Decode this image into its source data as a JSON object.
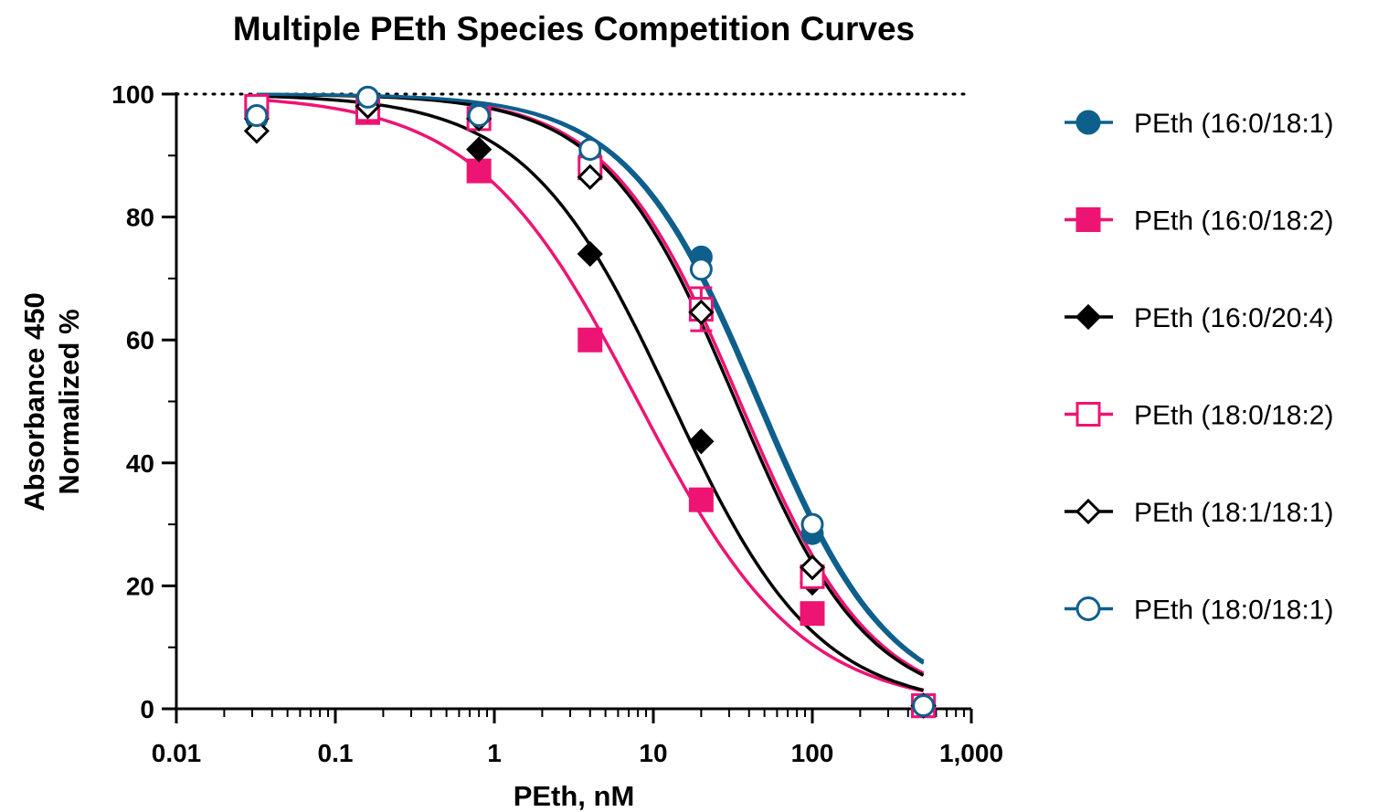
{
  "chart_data": {
    "type": "scatter",
    "title": "Multiple PEth Species Competition Curves",
    "xlabel": "PEth, nM",
    "ylabel_line1": "Absorbance 450",
    "ylabel_line2": "Normalized %",
    "xscale": "log",
    "xlim": [
      0.01,
      1000
    ],
    "ylim": [
      0,
      100
    ],
    "x_ticks": [
      0.01,
      0.1,
      1,
      10,
      100,
      1000
    ],
    "x_tick_labels": [
      "0.01",
      "0.1",
      "1",
      "10",
      "100",
      "1,000"
    ],
    "y_ticks": [
      0,
      20,
      40,
      60,
      80,
      100
    ],
    "y_tick_labels": [
      "0",
      "20",
      "40",
      "60",
      "80",
      "100"
    ],
    "reference_line": {
      "y": 100,
      "style": "dotted"
    },
    "legend_position": "right",
    "x": [
      0.032,
      0.16,
      0.8,
      4,
      20,
      100,
      500
    ],
    "series": [
      {
        "name": "PEth (16:0/18:1)",
        "marker": "circle",
        "filled": true,
        "color": "#0f5f8c",
        "values": [
          96,
          99.5,
          97,
          90,
          73.5,
          28.5,
          0.5
        ],
        "ic50": 45,
        "hill": 1.05
      },
      {
        "name": "PEth (16:0/18:2)",
        "marker": "square",
        "filled": true,
        "color": "#ee1473",
        "values": [
          98,
          97,
          87.5,
          60,
          34,
          15.5,
          0.5
        ],
        "ic50": 8,
        "hill": 0.85
      },
      {
        "name": "PEth (16:0/20:4)",
        "marker": "diamond",
        "filled": true,
        "color": "#000000",
        "values": [
          96,
          97.5,
          91,
          74,
          43.5,
          20.5,
          0.5
        ],
        "ic50": 13,
        "hill": 0.95
      },
      {
        "name": "PEth (18:0/18:2)",
        "marker": "square",
        "filled": false,
        "color": "#ee1473",
        "values": [
          98,
          97.5,
          96,
          88,
          65,
          21.5,
          0.5
        ],
        "ic50": 35,
        "hill": 1.05,
        "error": [
          0,
          0,
          0,
          0,
          3.5,
          0,
          0
        ]
      },
      {
        "name": "PEth (18:1/18:1)",
        "marker": "diamond",
        "filled": false,
        "color": "#000000",
        "values": [
          94,
          98,
          96,
          86.5,
          64.5,
          23,
          0.5
        ],
        "ic50": 33,
        "hill": 1.05
      },
      {
        "name": "PEth (18:0/18:1)",
        "marker": "circle",
        "filled": false,
        "color": "#0f5f8c",
        "values": [
          96.5,
          99.5,
          96.5,
          91,
          71.5,
          30,
          0.5
        ],
        "ic50": 47,
        "hill": 1.05
      }
    ]
  }
}
